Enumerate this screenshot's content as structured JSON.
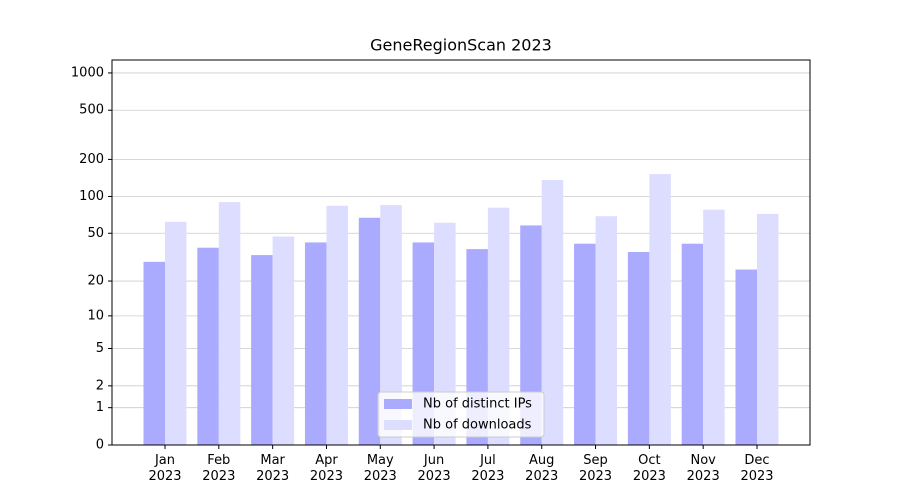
{
  "chart_data": {
    "type": "bar",
    "title": "GeneRegionScan 2023",
    "categories": [
      "Jan\n2023",
      "Feb\n2023",
      "Mar\n2023",
      "Apr\n2023",
      "May\n2023",
      "Jun\n2023",
      "Jul\n2023",
      "Aug\n2023",
      "Sep\n2023",
      "Oct\n2023",
      "Nov\n2023",
      "Dec\n2023"
    ],
    "series": [
      {
        "name": "Nb of distinct IPs",
        "color": "#aaaaff",
        "values": [
          29,
          38,
          33,
          42,
          67,
          42,
          37,
          58,
          41,
          35,
          41,
          25
        ]
      },
      {
        "name": "Nb of downloads",
        "color": "#ddddff",
        "values": [
          62,
          90,
          47,
          84,
          85,
          61,
          81,
          136,
          69,
          152,
          78,
          72
        ]
      }
    ],
    "yscale": "log1p",
    "ylim": [
      0,
      1272
    ],
    "yticks": [
      0,
      1,
      2,
      5,
      10,
      20,
      50,
      100,
      200,
      500,
      1000
    ],
    "grid": true,
    "legend": "lower center"
  }
}
